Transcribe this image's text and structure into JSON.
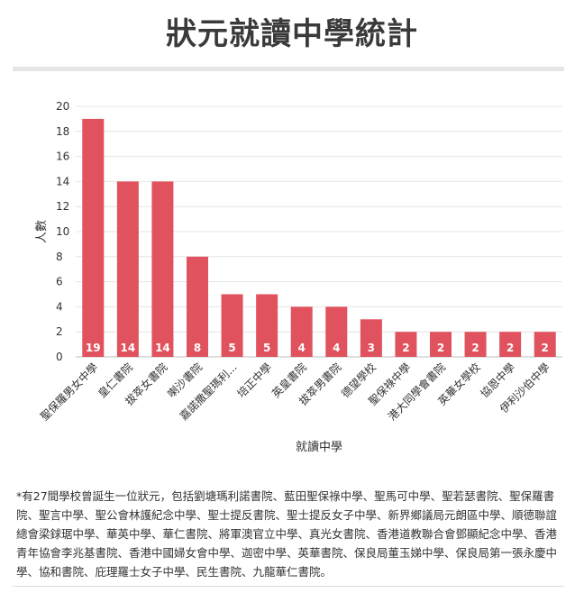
{
  "title": "狀元就讀中學統計",
  "footnote": "*有27間學校曾誕生一位狀元，包括劉塘瑪利諾書院、藍田聖保祿中學、聖馬可中學、聖若瑟書院、聖保羅書院、聖言中學、聖公會林護紀念中學、聖士提反書院、聖士提反女子中學、新界鄉議局元朗區中學、順德聯誼總會梁銶琚中學、華英中學、華仁書院、將軍澳官立中學、真光女書院、香港道教聯合會鄧顯紀念中學、香港青年協會李兆基書院、香港中國婦女會中學、迦密中學、英華書院、保良局董玉娣中學、保良局第一張永慶中學、協和書院、庇理羅士女子中學、民生書院、九龍華仁書院。",
  "chart_data": {
    "type": "bar",
    "xlabel": "就讀中學",
    "ylabel": "人數",
    "ylim": [
      0,
      20
    ],
    "yticks": [
      0,
      2,
      4,
      6,
      8,
      10,
      12,
      14,
      16,
      18,
      20
    ],
    "categories": [
      "聖保羅男女中學",
      "皇仁書院",
      "拔萃女書院",
      "喇沙書院",
      "嘉諾撒聖瑪利...",
      "培正中學",
      "英皇書院",
      "拔萃男書院",
      "德望學校",
      "聖保祿中學",
      "港大同學會書院",
      "英華女學校",
      "協恩中學",
      "伊利沙伯中學"
    ],
    "values": [
      19,
      14,
      14,
      8,
      5,
      5,
      4,
      4,
      3,
      2,
      2,
      2,
      2,
      2
    ],
    "bar_color": "#e0525d",
    "grid": true
  }
}
